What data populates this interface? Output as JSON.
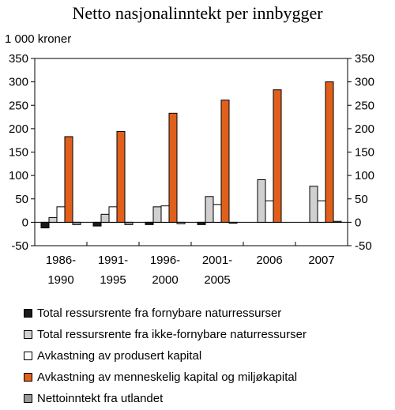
{
  "chart_data": {
    "type": "bar",
    "title": "Netto nasjonalinntekt per innbygger",
    "unit_label": "1 000 kroner",
    "categories": [
      [
        "1986-",
        "1990"
      ],
      [
        "1991-",
        "1995"
      ],
      [
        "1996-",
        "2000"
      ],
      [
        "2001-",
        "2005"
      ],
      [
        "2006"
      ],
      [
        "2007"
      ]
    ],
    "ylim": [
      -50,
      350
    ],
    "yticks": [
      "350",
      "300",
      "250",
      "200",
      "150",
      "100",
      "50",
      "0",
      "-50"
    ],
    "ytick_values": [
      350,
      300,
      250,
      200,
      150,
      100,
      50,
      0,
      -50
    ],
    "grid": false,
    "legend_position": "bottom",
    "series": [
      {
        "name": "Total ressursrente fra fornybare naturressurser",
        "color": "#1a1a1a",
        "values": [
          -12,
          -8,
          -5,
          -5,
          0,
          0
        ]
      },
      {
        "name": "Total ressursrente fra ikke-fornybare naturressurser",
        "color": "#d0d0d0",
        "values": [
          10,
          17,
          33,
          55,
          91,
          77
        ]
      },
      {
        "name": "Avkastning av produsert kapital",
        "color": "#ffffff",
        "values": [
          33,
          33,
          35,
          38,
          46,
          46
        ]
      },
      {
        "name": "Avkastning av menneskelig kapital og miljøkapital",
        "color": "#e0601b",
        "values": [
          183,
          194,
          233,
          261,
          283,
          300
        ]
      },
      {
        "name": "Nettoinntekt fra utlandet",
        "color": "#9a9a9a",
        "values": [
          -5,
          -5,
          -3,
          -2,
          0,
          2
        ]
      }
    ]
  }
}
